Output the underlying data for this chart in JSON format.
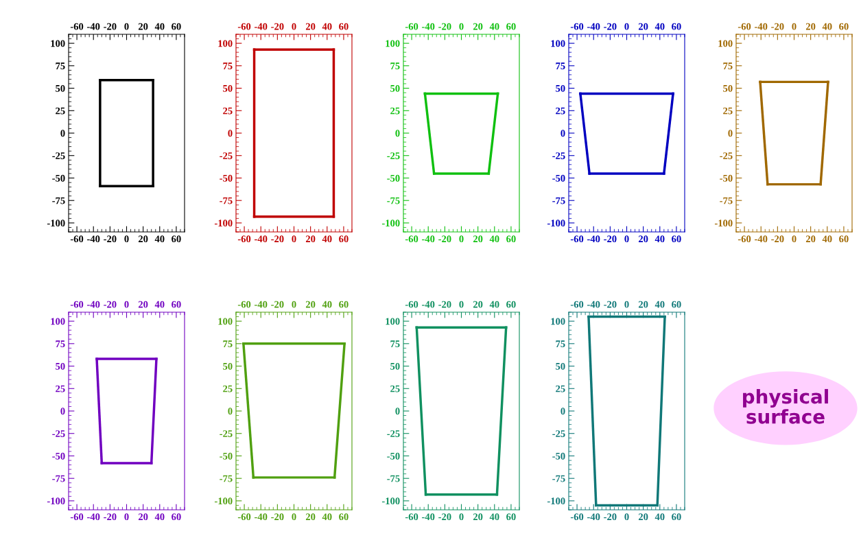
{
  "chart_data": [
    {
      "type": "line",
      "xlim": [
        -70,
        70
      ],
      "ylim": [
        -110,
        110
      ],
      "xticks": [
        -60,
        -40,
        -20,
        0,
        20,
        40,
        60
      ],
      "x2lim": [
        -70,
        70
      ],
      "x2ticks": [
        -60,
        -40,
        -20,
        0,
        20,
        40,
        60
      ],
      "yticks": [
        -100,
        -75,
        -50,
        -25,
        0,
        25,
        50,
        75,
        100
      ],
      "marker": "none",
      "line_style": "solid",
      "series": [
        {
          "color": "#000000",
          "x": [
            -32,
            32
          ],
          "values": [
            59,
            59
          ]
        },
        {
          "color": "#000000",
          "x": [
            32,
            32
          ],
          "values": [
            59,
            -59
          ]
        },
        {
          "color": "#000000",
          "x": [
            -32,
            32
          ],
          "values": [
            -59,
            -59
          ]
        },
        {
          "color": "#000000",
          "x": [
            -32,
            -32
          ],
          "values": [
            -59,
            59
          ]
        }
      ]
    },
    {
      "type": "line",
      "xlim": [
        -70,
        70
      ],
      "ylim": [
        -110,
        110
      ],
      "xticks": [
        -60,
        -40,
        -20,
        0,
        20,
        40,
        60
      ],
      "x2lim": [
        -70,
        70
      ],
      "x2ticks": [
        -60,
        -40,
        -20,
        0,
        20,
        40,
        60
      ],
      "yticks": [
        -100,
        -75,
        -50,
        -25,
        0,
        25,
        50,
        75,
        100
      ],
      "marker": "none",
      "line_style": "solid",
      "series": [
        {
          "color": "#c00000",
          "x": [
            -48,
            48
          ],
          "values": [
            93,
            93
          ]
        },
        {
          "color": "#c00000",
          "x": [
            48,
            48
          ],
          "values": [
            93,
            -93
          ]
        },
        {
          "color": "#c00000",
          "x": [
            -48,
            48
          ],
          "values": [
            -93,
            -93
          ]
        },
        {
          "color": "#c00000",
          "x": [
            -48,
            -48
          ],
          "values": [
            -93,
            93
          ]
        }
      ]
    },
    {
      "type": "line",
      "xlim": [
        -70,
        70
      ],
      "ylim": [
        -110,
        110
      ],
      "xticks": [
        -60,
        -40,
        -20,
        0,
        20,
        40,
        60
      ],
      "x2lim": [
        -70,
        70
      ],
      "x2ticks": [
        -60,
        -40,
        -20,
        0,
        20,
        40,
        60
      ],
      "yticks": [
        -100,
        -75,
        -50,
        -25,
        0,
        25,
        50,
        75,
        100
      ],
      "marker": "none",
      "line_style": "solid",
      "series": [
        {
          "color": "#10c010",
          "x": [
            -44,
            44
          ],
          "values": [
            44,
            44
          ]
        },
        {
          "color": "#10c010",
          "x": [
            33,
            44
          ],
          "values": [
            -45,
            44
          ]
        },
        {
          "color": "#10c010",
          "x": [
            -33,
            33
          ],
          "values": [
            -45,
            -45
          ]
        },
        {
          "color": "#10c010",
          "x": [
            -44,
            -33
          ],
          "values": [
            44,
            -45
          ]
        }
      ]
    },
    {
      "type": "line",
      "xlim": [
        -70,
        70
      ],
      "ylim": [
        -110,
        110
      ],
      "xticks": [
        -60,
        -40,
        -20,
        0,
        20,
        40,
        60
      ],
      "x2lim": [
        -70,
        70
      ],
      "x2ticks": [
        -60,
        -40,
        -20,
        0,
        20,
        40,
        60
      ],
      "yticks": [
        -100,
        -75,
        -50,
        -25,
        0,
        25,
        50,
        75,
        100
      ],
      "marker": "none",
      "line_style": "solid",
      "series": [
        {
          "color": "#0000c0",
          "x": [
            -56,
            56
          ],
          "values": [
            44,
            44
          ]
        },
        {
          "color": "#0000c0",
          "x": [
            45,
            56
          ],
          "values": [
            -45,
            44
          ]
        },
        {
          "color": "#0000c0",
          "x": [
            -45,
            45
          ],
          "values": [
            -45,
            -45
          ]
        },
        {
          "color": "#0000c0",
          "x": [
            -56,
            -45
          ],
          "values": [
            44,
            -45
          ]
        }
      ]
    },
    {
      "type": "line",
      "xlim": [
        -70,
        70
      ],
      "ylim": [
        -110,
        110
      ],
      "xticks": [
        -60,
        -40,
        -20,
        0,
        20,
        40,
        60
      ],
      "x2lim": [
        -70,
        70
      ],
      "x2ticks": [
        -60,
        -40,
        -20,
        0,
        20,
        40,
        60
      ],
      "yticks": [
        -100,
        -75,
        -50,
        -25,
        0,
        25,
        50,
        75,
        100
      ],
      "marker": "none",
      "line_style": "solid",
      "series": [
        {
          "color": "#a06800",
          "x": [
            -41,
            41
          ],
          "values": [
            57,
            57
          ]
        },
        {
          "color": "#a06800",
          "x": [
            32,
            41
          ],
          "values": [
            -57,
            57
          ]
        },
        {
          "color": "#a06800",
          "x": [
            -32,
            32
          ],
          "values": [
            -57,
            -57
          ]
        },
        {
          "color": "#a06800",
          "x": [
            -41,
            -32
          ],
          "values": [
            57,
            -57
          ]
        }
      ]
    },
    {
      "type": "line",
      "xlim": [
        -70,
        70
      ],
      "ylim": [
        -110,
        110
      ],
      "xticks": [
        -60,
        -40,
        -20,
        0,
        20,
        40,
        60
      ],
      "x2lim": [
        -70,
        70
      ],
      "x2ticks": [
        -60,
        -40,
        -20,
        0,
        20,
        40,
        60
      ],
      "yticks": [
        -100,
        -75,
        -50,
        -25,
        0,
        25,
        50,
        75,
        100
      ],
      "marker": "none",
      "line_style": "solid",
      "series": [
        {
          "color": "#7000c0",
          "x": [
            -36,
            36
          ],
          "values": [
            58,
            58
          ]
        },
        {
          "color": "#7000c0",
          "x": [
            30,
            36
          ],
          "values": [
            -58,
            58
          ]
        },
        {
          "color": "#7000c0",
          "x": [
            -30,
            30
          ],
          "values": [
            -58,
            -58
          ]
        },
        {
          "color": "#7000c0",
          "x": [
            -36,
            -30
          ],
          "values": [
            58,
            -58
          ]
        }
      ]
    },
    {
      "type": "line",
      "xlim": [
        -70,
        70
      ],
      "ylim": [
        -110,
        110
      ],
      "xticks": [
        -60,
        -40,
        -20,
        0,
        20,
        40,
        60
      ],
      "x2lim": [
        -70,
        70
      ],
      "x2ticks": [
        -60,
        -40,
        -20,
        0,
        20,
        40,
        60
      ],
      "yticks": [
        -100,
        -75,
        -50,
        -25,
        0,
        25,
        50,
        75,
        100
      ],
      "marker": "none",
      "line_style": "solid",
      "series": [
        {
          "color": "#50a010",
          "x": [
            -61,
            61
          ],
          "values": [
            75,
            75
          ]
        },
        {
          "color": "#50a010",
          "x": [
            49,
            61
          ],
          "values": [
            -74,
            75
          ]
        },
        {
          "color": "#50a010",
          "x": [
            -49,
            49
          ],
          "values": [
            -74,
            -74
          ]
        },
        {
          "color": "#50a010",
          "x": [
            -61,
            -49
          ],
          "values": [
            75,
            -74
          ]
        }
      ]
    },
    {
      "type": "line",
      "xlim": [
        -70,
        70
      ],
      "ylim": [
        -110,
        110
      ],
      "xticks": [
        -60,
        -40,
        -20,
        0,
        20,
        40,
        60
      ],
      "x2lim": [
        -70,
        70
      ],
      "x2ticks": [
        -60,
        -40,
        -20,
        0,
        20,
        40,
        60
      ],
      "yticks": [
        -100,
        -75,
        -50,
        -25,
        0,
        25,
        50,
        75,
        100
      ],
      "marker": "none",
      "line_style": "solid",
      "series": [
        {
          "color": "#109060",
          "x": [
            -54,
            54
          ],
          "values": [
            93,
            93
          ]
        },
        {
          "color": "#109060",
          "x": [
            43,
            54
          ],
          "values": [
            -93,
            93
          ]
        },
        {
          "color": "#109060",
          "x": [
            -43,
            43
          ],
          "values": [
            -93,
            -93
          ]
        },
        {
          "color": "#109060",
          "x": [
            -54,
            -43
          ],
          "values": [
            93,
            -93
          ]
        }
      ]
    },
    {
      "type": "line",
      "xlim": [
        -70,
        70
      ],
      "ylim": [
        -110,
        110
      ],
      "xticks": [
        -60,
        -40,
        -20,
        0,
        20,
        40,
        60
      ],
      "x2lim": [
        -70,
        70
      ],
      "x2ticks": [
        -60,
        -40,
        -20,
        0,
        20,
        40,
        60
      ],
      "yticks": [
        -100,
        -75,
        -50,
        -25,
        0,
        25,
        50,
        75,
        100
      ],
      "marker": "none",
      "line_style": "solid",
      "series": [
        {
          "color": "#107878",
          "x": [
            -46,
            46
          ],
          "values": [
            105,
            105
          ]
        },
        {
          "color": "#107878",
          "x": [
            37,
            46
          ],
          "values": [
            -105,
            105
          ]
        },
        {
          "color": "#107878",
          "x": [
            -37,
            37
          ],
          "values": [
            -105,
            -105
          ]
        },
        {
          "color": "#107878",
          "x": [
            -46,
            -37
          ],
          "values": [
            105,
            -105
          ]
        }
      ]
    },
    {
      "type": "other",
      "annotations": [
        "physical\nsurface"
      ]
    }
  ]
}
